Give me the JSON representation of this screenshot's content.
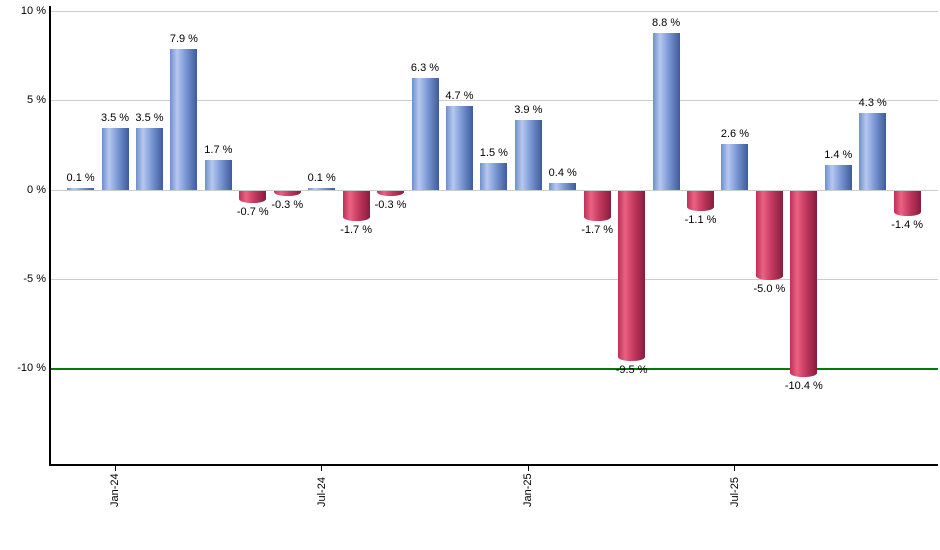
{
  "chart_data": {
    "type": "bar",
    "title": "",
    "unit": "%",
    "values": [
      0.1,
      3.5,
      3.5,
      7.9,
      1.7,
      -0.7,
      -0.3,
      0.1,
      -1.7,
      -0.3,
      6.3,
      4.7,
      1.5,
      3.9,
      0.4,
      -1.7,
      -9.5,
      8.8,
      -1.1,
      2.6,
      -5.0,
      -10.4,
      1.4,
      4.3,
      -1.4
    ],
    "bar_labels": [
      "0.1 %",
      "3.5 %",
      "3.5 %",
      "7.9 %",
      "1.7 %",
      "-0.7 %",
      "-0.3 %",
      "0.1 %",
      "-1.7 %",
      "-0.3 %",
      "6.3 %",
      "4.7 %",
      "1.5 %",
      "3.9 %",
      "0.4 %",
      "-1.7 %",
      "-9.5 %",
      "8.8 %",
      "-1.1 %",
      "2.6 %",
      "-5.0 %",
      "-10.4 %",
      "1.4 %",
      "4.3 %",
      "-1.4 %"
    ],
    "x_axis": {
      "tick_labels": [
        "Jan-24",
        "Jul-24",
        "Jan-25",
        "Jul-25"
      ],
      "tick_bar_indices": [
        1,
        7,
        13,
        19
      ]
    },
    "y_axis": {
      "ticks": [
        {
          "label": "10 %",
          "value": 10
        },
        {
          "label": "5 %",
          "value": 5
        },
        {
          "label": "0 %",
          "value": 0
        },
        {
          "label": "-5 %",
          "value": -5
        },
        {
          "label": "-10 %",
          "value": -10
        }
      ],
      "ylim": [
        -15.4,
        10.3
      ],
      "grid": true
    },
    "threshold_line": {
      "value": -10,
      "color": "#007c00"
    },
    "legend": null,
    "colors": {
      "positive_bar": "#7f9cd8",
      "positive_bar_light": "#b6c8ee",
      "positive_bar_dark": "#3d5b9b",
      "negative_bar": "#c83b62",
      "negative_bar_light": "#ea6283",
      "negative_bar_dark": "#871c3e",
      "grid": "#cccccc",
      "axis": "#000000",
      "label_text": "#000000"
    }
  }
}
